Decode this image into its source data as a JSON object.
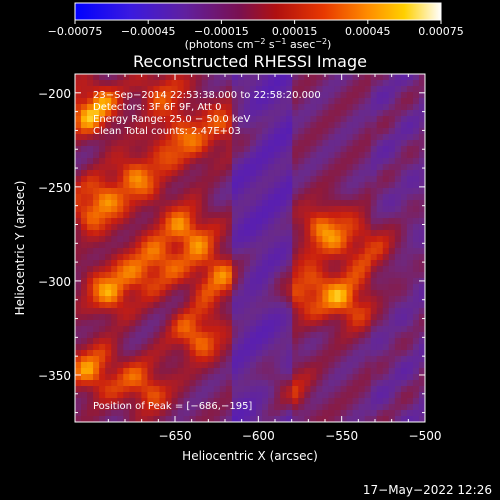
{
  "chart_data": {
    "type": "heatmap",
    "title": "Reconstructed RHESSI Image",
    "xlabel": "Heliocentric X (arcsec)",
    "ylabel": "Heliocentric Y (arcsec)",
    "xlim": [
      -710,
      -500
    ],
    "ylim": [
      -375,
      -190
    ],
    "xticks": [
      -650,
      -600,
      -550,
      -500
    ],
    "xtick_labels": [
      "−650",
      "−600",
      "−550",
      "−500"
    ],
    "yticks": [
      -200,
      -250,
      -300,
      -350
    ],
    "ytick_labels": [
      "−200",
      "−250",
      "−300",
      "−350"
    ],
    "colorbar": {
      "ticks": [
        -0.00075,
        -0.00045,
        -0.00015,
        0.00015,
        0.00045,
        0.00075
      ],
      "tick_labels": [
        "−0.00075",
        "−0.00045",
        "−0.00015",
        "0.00015",
        "0.00045",
        "0.00075"
      ],
      "range": [
        -0.00075,
        0.00075
      ],
      "colormap": "blue-purple-red-orange-yellow-white",
      "unit_prefix": "(photons cm",
      "unit_sup1": "−2",
      "unit_mid1": " s",
      "unit_sup2": "−1",
      "unit_mid2": " asec",
      "unit_sup3": "−2",
      "unit_suffix": ")"
    },
    "peak": [
      -686,
      -195
    ],
    "annotations": {
      "time_range": "23−Sep−2014 22:53:38.000 to 22:58:20.000",
      "detectors": "Detectors: 3F 6F 9F, Att 0",
      "energy": "Energy Range: 25.0 − 50.0 keV",
      "clean": "Clean     Total counts: 2.47E+03",
      "peak_text": "Position of Peak = [−686,−195]"
    },
    "grid": false
  },
  "footer": {
    "timestamp": "17−May−2022 12:26"
  },
  "colors": {
    "background": "#000000",
    "text": "#ffffff",
    "colormap_stops": [
      "#0000ff",
      "#5a1fb0",
      "#6a2a8a",
      "#8a1a40",
      "#c81e10",
      "#f06000",
      "#ffb000",
      "#ffff60",
      "#ffffff"
    ]
  }
}
